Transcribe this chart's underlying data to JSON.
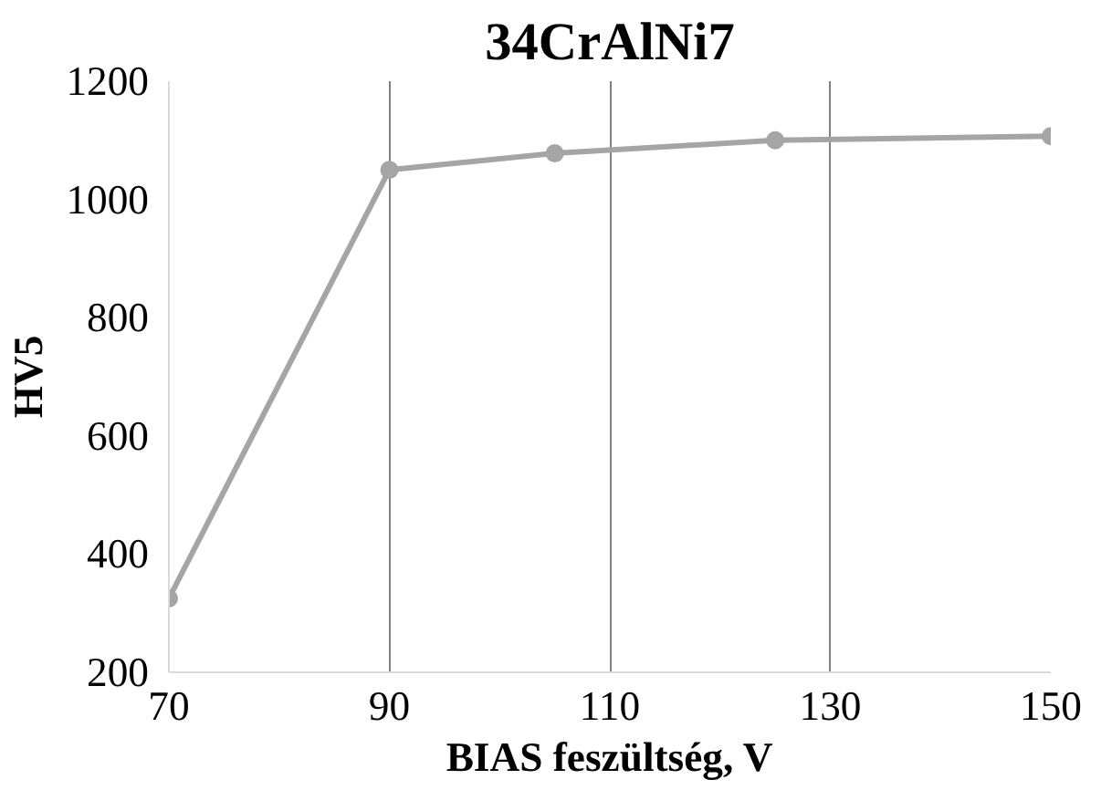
{
  "chart_data": {
    "type": "line",
    "title": "34CrAlNi7",
    "xlabel": "BIAS feszültség, V",
    "ylabel": "HV5",
    "x": [
      70,
      90,
      105,
      125,
      150
    ],
    "series": [
      {
        "color": "#a5a5a5",
        "values": [
          325,
          1050,
          1078,
          1100,
          1107
        ]
      }
    ],
    "xlim": [
      70,
      150
    ],
    "xticks": [
      70,
      90,
      110,
      130,
      150
    ],
    "ylim": [
      200,
      1200
    ],
    "yticks": [
      200,
      400,
      600,
      800,
      1000,
      1200
    ],
    "grid": "x",
    "marker": "circle",
    "line_style": "solid"
  }
}
